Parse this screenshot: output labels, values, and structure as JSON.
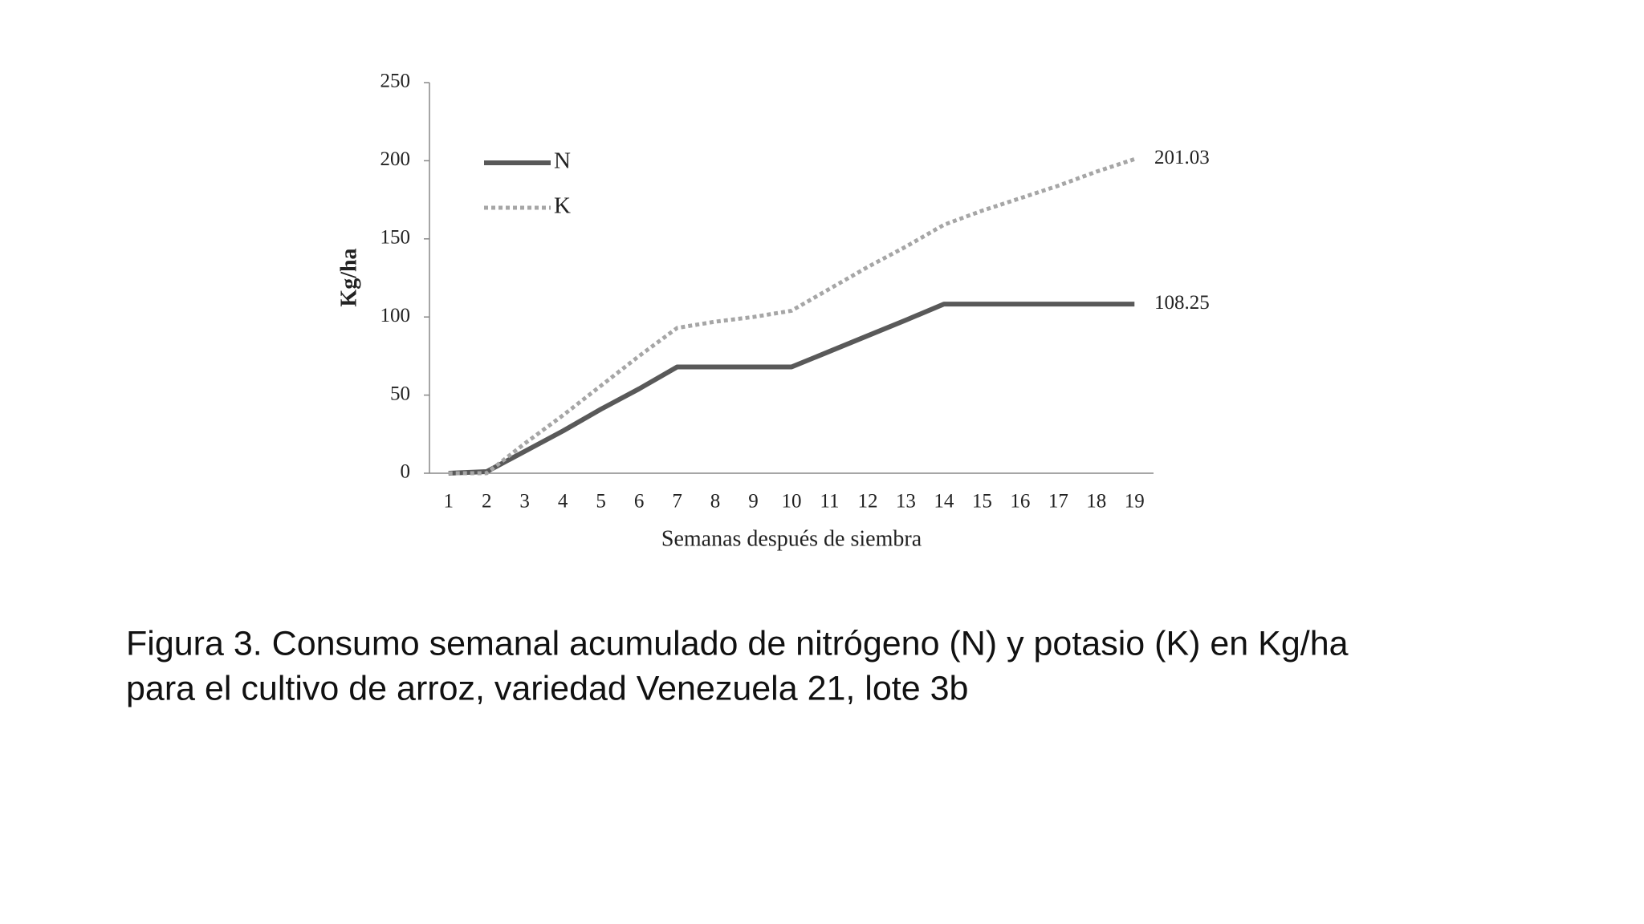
{
  "chart_data": {
    "type": "line",
    "categories": [
      "1",
      "2",
      "3",
      "4",
      "5",
      "6",
      "7",
      "8",
      "9",
      "10",
      "11",
      "12",
      "13",
      "14",
      "15",
      "16",
      "17",
      "18",
      "19"
    ],
    "series": [
      {
        "name": "N",
        "color": "#595959",
        "dashed": false,
        "values": [
          0,
          1,
          14,
          27,
          41,
          54,
          68,
          68,
          68,
          68,
          78,
          88,
          98,
          108.25,
          108.25,
          108.25,
          108.25,
          108.25,
          108.25
        ]
      },
      {
        "name": "K",
        "color": "#a6a6a6",
        "dashed": true,
        "values": [
          0,
          0,
          19,
          37,
          56,
          75,
          93,
          97,
          100,
          104,
          118,
          132,
          145,
          159,
          168,
          176,
          184,
          193,
          201.03
        ]
      }
    ],
    "ylim": [
      0,
      250
    ],
    "yticks": [
      0,
      50,
      100,
      150,
      200,
      250
    ],
    "y_label": "Kg/ha",
    "x_label": "Semanas después de siembra",
    "legend": "upper left",
    "caption": [
      "Figura 3. Consumo semanal acumulado de nitrógeno (N) y potasio (K) en Kg/ha",
      "para el cultivo de arroz, variedad Venezuela 21, lote 3b"
    ]
  }
}
